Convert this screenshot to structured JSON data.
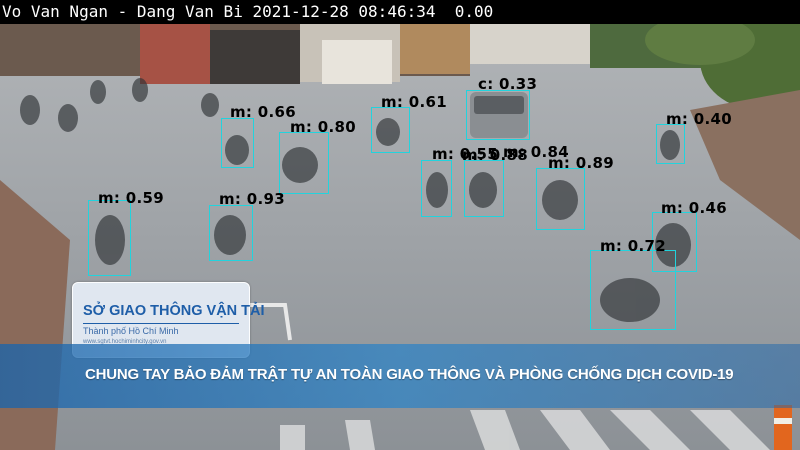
{
  "camera": {
    "header_text": "Vo Van Ngan - Dang Van Bi 2021-12-28 08:46:34  0.00",
    "logo": {
      "title": "SỞ GIAO THÔNG VẬN TẢI",
      "subtitle": "Thành phố Hồ Chí Minh",
      "url": "www.sgtvt.hochiminhcity.gov.vn"
    },
    "banner_text": "CHUNG TAY BẢO ĐẢM TRẬT TỰ AN TOÀN GIAO THÔNG VÀ PHÒNG CHỐNG DỊCH COVID-19"
  },
  "detections": [
    {
      "label": "m: 0.66"
    },
    {
      "label": "m: 0.80"
    },
    {
      "label": "m: 0.61"
    },
    {
      "label": "m: 0.55"
    },
    {
      "label": "c: 0.33"
    },
    {
      "label": "m: 0.40"
    },
    {
      "label": "m: 0.88"
    },
    {
      "label": "m: 0.84"
    },
    {
      "label": "m: 0.89"
    },
    {
      "label": "m: 0.59"
    },
    {
      "label": "m: 0.93"
    },
    {
      "label": "m: 0.46"
    },
    {
      "label": "m: 0.72"
    }
  ],
  "colors": {
    "box": "#22d3dd",
    "label": "#000000",
    "banner": "#2a7cc0",
    "logo_text": "#1e5ea8"
  }
}
